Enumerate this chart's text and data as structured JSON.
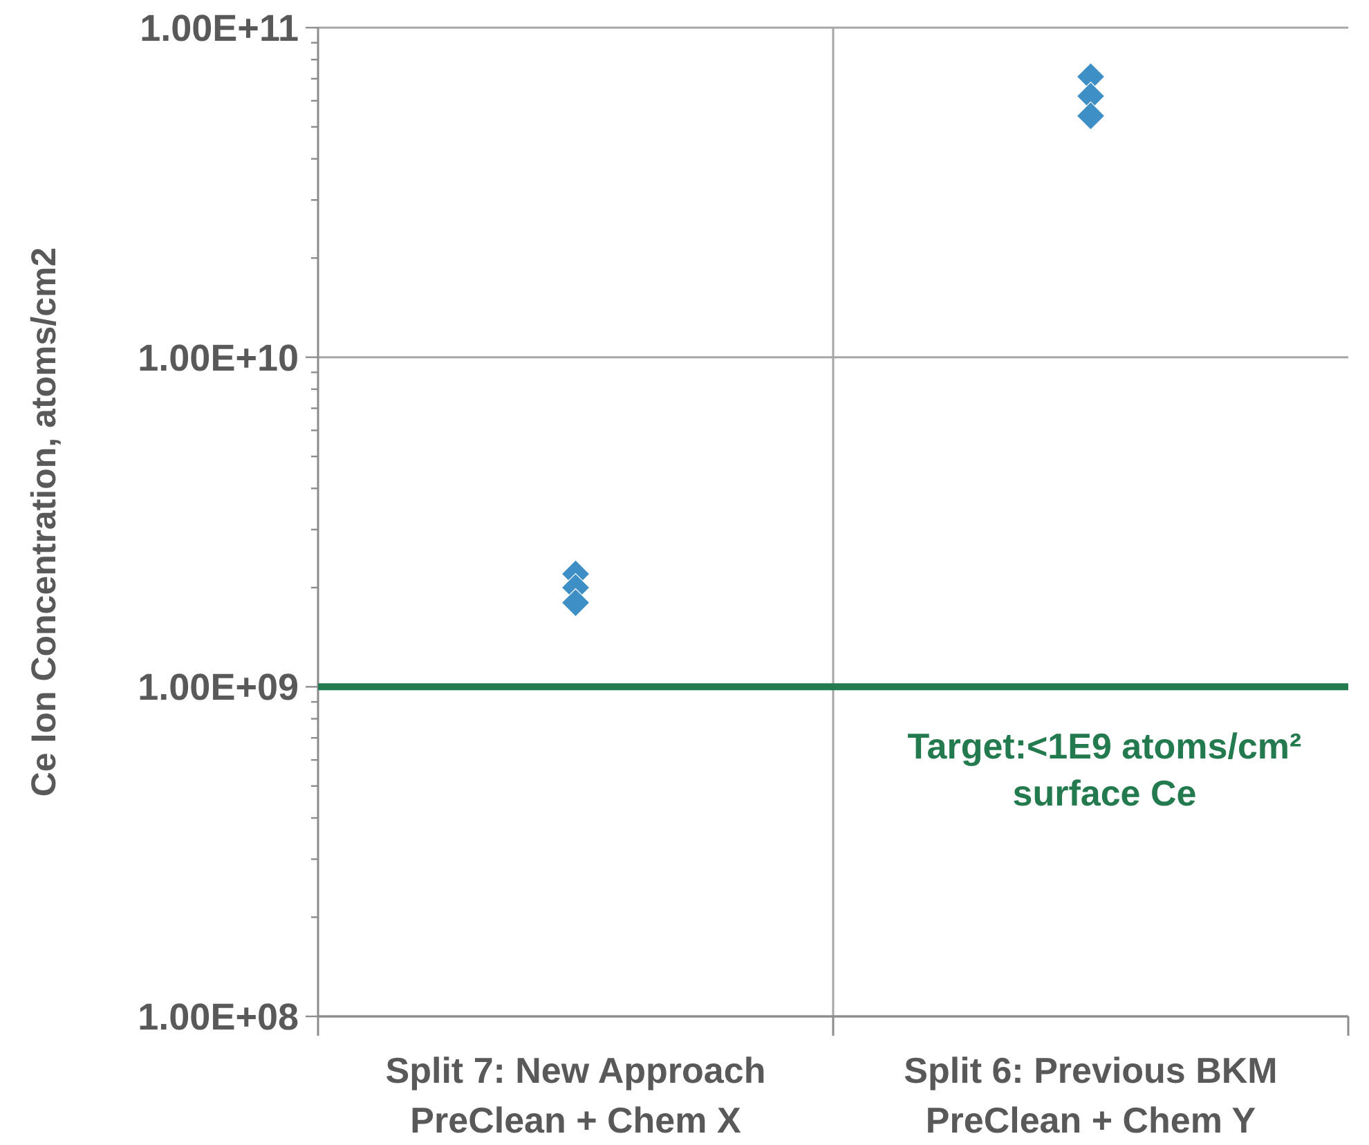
{
  "chart_data": {
    "type": "scatter",
    "ylabel": "Ce Ion Concentration, atoms/cm2",
    "categories": [
      "Split 7: New Approach\nPreClean + Chem X",
      "Split 6: Previous BKM\nPreClean + Chem Y"
    ],
    "series": [
      {
        "color": "#3d8fc6",
        "values": [
          2200000000.0,
          71000000000.0
        ]
      },
      {
        "color": "#3d8fc6",
        "values": [
          2000000000.0,
          62000000000.0
        ]
      },
      {
        "color": "#3d8fc6",
        "values": [
          1800000000.0,
          54000000000.0
        ]
      }
    ],
    "log": "y",
    "ylim": [
      100000000.0,
      100000000000.0
    ],
    "yticks": [
      {
        "value": 100000000.0,
        "label": "1.00E+08"
      },
      {
        "value": 200000000.0,
        "label": null
      },
      {
        "value": 300000000.0,
        "label": null
      },
      {
        "value": 400000000.0,
        "label": null
      },
      {
        "value": 500000000.0,
        "label": null
      },
      {
        "value": 600000000.0,
        "label": null
      },
      {
        "value": 700000000.0,
        "label": null
      },
      {
        "value": 800000000.0,
        "label": null
      },
      {
        "value": 900000000.0,
        "label": null
      },
      {
        "value": 1000000000.0,
        "label": "1.00E+09"
      },
      {
        "value": 2000000000.0,
        "label": null
      },
      {
        "value": 3000000000.0,
        "label": null
      },
      {
        "value": 4000000000.0,
        "label": null
      },
      {
        "value": 5000000000.0,
        "label": null
      },
      {
        "value": 6000000000.0,
        "label": null
      },
      {
        "value": 7000000000.0,
        "label": null
      },
      {
        "value": 8000000000.0,
        "label": null
      },
      {
        "value": 9000000000.0,
        "label": null
      },
      {
        "value": 10000000000.0,
        "label": "1.00E+10"
      },
      {
        "value": 20000000000.0,
        "label": null
      },
      {
        "value": 30000000000.0,
        "label": null
      },
      {
        "value": 40000000000.0,
        "label": null
      },
      {
        "value": 50000000000.0,
        "label": null
      },
      {
        "value": 60000000000.0,
        "label": null
      },
      {
        "value": 70000000000.0,
        "label": null
      },
      {
        "value": 80000000000.0,
        "label": null
      },
      {
        "value": 90000000000.0,
        "label": null
      },
      {
        "value": 100000000000.0,
        "label": "1.00E+11"
      }
    ],
    "grid": true,
    "marker": "diamond",
    "ref_lines": [
      {
        "axis": "y",
        "value": 1000000000.0,
        "label": "Target:<1E9 atoms/cm² surface Ce",
        "color": "#237a4e"
      }
    ]
  }
}
